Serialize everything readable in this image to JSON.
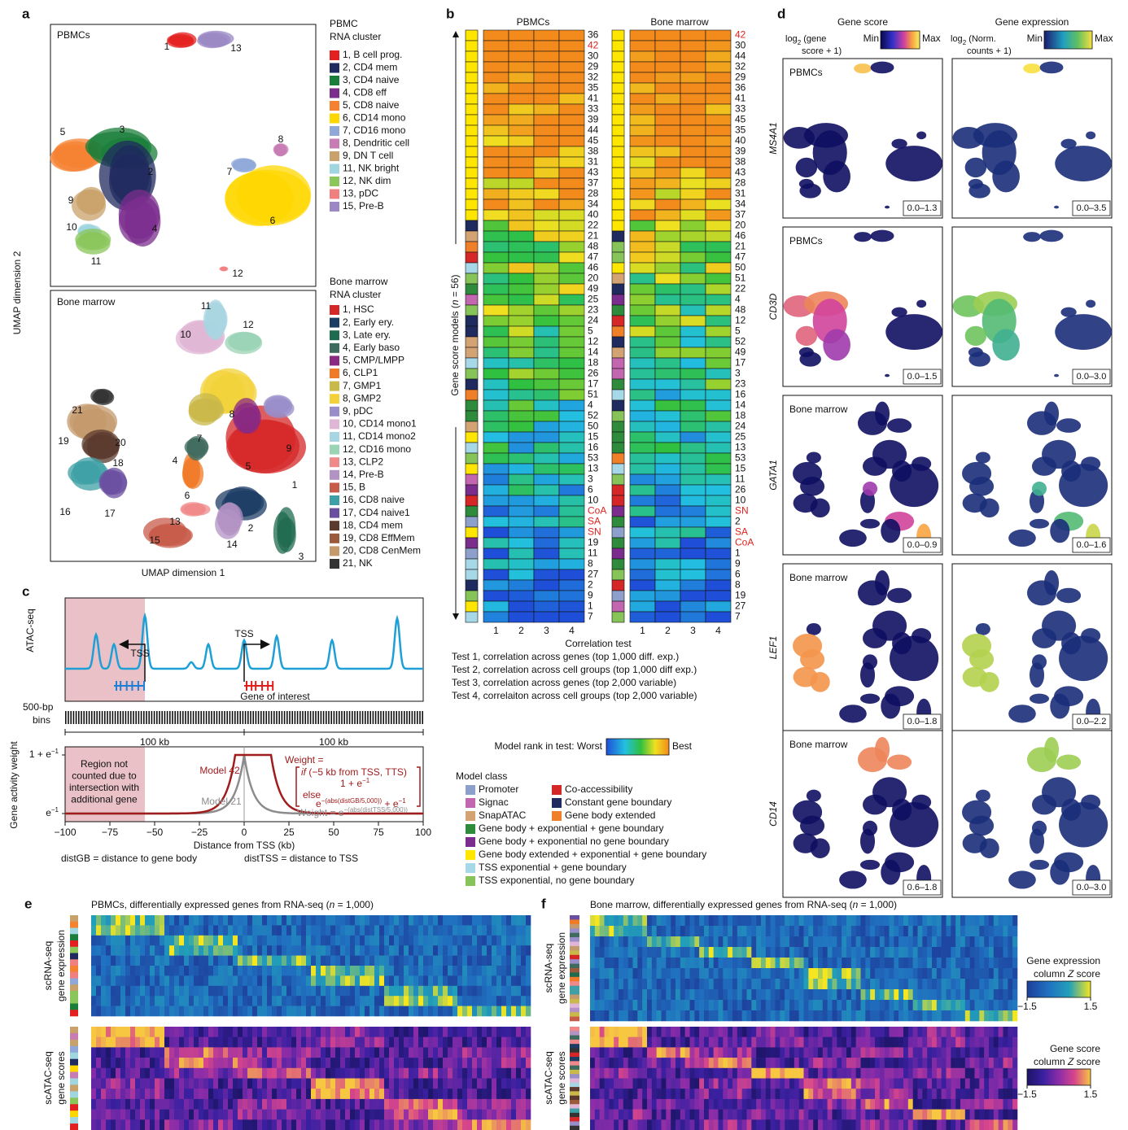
{
  "a": {
    "label": "a",
    "top_title": "PBMCs",
    "bottom_title": "Bone marrow",
    "y_axis": "UMAP dimension 2",
    "x_axis": "UMAP dimension 1",
    "pbmc_cluster_labels": [
      "1",
      "13",
      "5",
      "3",
      "2",
      "9",
      "10",
      "11",
      "4",
      "7",
      "8",
      "6",
      "12"
    ],
    "bm_cluster_labels": [
      "11",
      "12",
      "10",
      "21",
      "19",
      "20",
      "18",
      "16",
      "17",
      "8",
      "7",
      "9",
      "4",
      "5",
      "1",
      "6",
      "13",
      "2",
      "3",
      "15",
      "14"
    ],
    "pbmc_legend": {
      "title": [
        "PBMC",
        "RNA cluster"
      ],
      "items": [
        {
          "label": "1, B cell prog.",
          "color": "#e3201f"
        },
        {
          "label": "2, CD4 mem",
          "color": "#1f2a5e"
        },
        {
          "label": "3, CD4 naive",
          "color": "#1a7d3a"
        },
        {
          "label": "4, CD8 eff",
          "color": "#7b2d8e"
        },
        {
          "label": "5, CD8 naive",
          "color": "#f58231"
        },
        {
          "label": "6, CD14 mono",
          "color": "#ffd700"
        },
        {
          "label": "7, CD16 mono",
          "color": "#8fa8d8"
        },
        {
          "label": "8, Dendritic cell",
          "color": "#c77cb3"
        },
        {
          "label": "9, DN T cell",
          "color": "#c9a16b"
        },
        {
          "label": "11, NK bright",
          "color": "#9fd6e0"
        },
        {
          "label": "12, NK dim",
          "color": "#8ac65a"
        },
        {
          "label": "13, pDC",
          "color": "#f08080"
        },
        {
          "label": "15, Pre-B",
          "color": "#9b88c4"
        }
      ]
    },
    "bm_legend": {
      "title": [
        "Bone marrow",
        "RNA cluster"
      ],
      "items": [
        {
          "label": "1, HSC",
          "color": "#d62728"
        },
        {
          "label": "2, Early ery.",
          "color": "#1d3c64"
        },
        {
          "label": "3, Late ery.",
          "color": "#1f6b4f"
        },
        {
          "label": "4, Early baso",
          "color": "#3f6b5e"
        },
        {
          "label": "5, CMP/LMPP",
          "color": "#8a2a83"
        },
        {
          "label": "6, CLP1",
          "color": "#f07a28"
        },
        {
          "label": "7, GMP1",
          "color": "#c9b84a"
        },
        {
          "label": "8, GMP2",
          "color": "#f2d13a"
        },
        {
          "label": "9, pDC",
          "color": "#9a8ec9"
        },
        {
          "label": "10, CD14 mono1",
          "color": "#e0b6d6"
        },
        {
          "label": "11, CD14 mono2",
          "color": "#a8d5e2"
        },
        {
          "label": "12, CD16 mono",
          "color": "#9bd3b5"
        },
        {
          "label": "13, CLP2",
          "color": "#f08a8a"
        },
        {
          "label": "14, Pre-B",
          "color": "#b392c4"
        },
        {
          "label": "15, B",
          "color": "#c75b4a"
        },
        {
          "label": "16, CD8 naive",
          "color": "#3ea0a6"
        },
        {
          "label": "17, CD4 naive1",
          "color": "#6a4fa0"
        },
        {
          "label": "18, CD4 mem",
          "color": "#5b3a2e"
        },
        {
          "label": "19, CD8 EffMem",
          "color": "#9c5a3c"
        },
        {
          "label": "20, CD8 CenMem",
          "color": "#c49a6c"
        },
        {
          "label": "21, NK",
          "color": "#333333"
        }
      ]
    }
  },
  "b": {
    "label": "b",
    "headers": [
      "PBMCs",
      "Bone marrow"
    ],
    "y_axis": [
      "Gene score models (",
      "n",
      " = 56)"
    ],
    "left_rows": [
      "36",
      {
        "text": "42",
        "color": "#e0231e"
      },
      "30",
      "29",
      "32",
      "35",
      "41",
      "33",
      "39",
      "44",
      "45",
      "38",
      "31",
      "43",
      "37",
      "28",
      "34",
      "40",
      "22",
      "21",
      "48",
      "47",
      "46",
      "20",
      "49",
      "25",
      "23",
      "24",
      "5",
      "12",
      "14",
      "18",
      "26",
      "17",
      "51",
      "4",
      "52",
      "50",
      "15",
      "16",
      "53",
      "13",
      "3",
      "6",
      "10",
      {
        "text": "CoA",
        "color": "#e0231e"
      },
      {
        "text": "SA",
        "color": "#e0231e"
      },
      {
        "text": "SN",
        "color": "#e0231e"
      },
      "19",
      "11",
      "8",
      "27",
      "2",
      "9",
      "1",
      "7"
    ],
    "right_rows": [
      {
        "text": "42",
        "color": "#e0231e"
      },
      "30",
      "44",
      "32",
      "29",
      "36",
      "41",
      "33",
      "45",
      "35",
      "40",
      "39",
      "38",
      "43",
      "28",
      "31",
      "34",
      "37",
      "20",
      "46",
      "21",
      "47",
      "50",
      "51",
      "22",
      "4",
      "48",
      "12",
      "5",
      "52",
      "49",
      "17",
      "3",
      "23",
      "16",
      "14",
      "18",
      "24",
      "25",
      "13",
      "53",
      "15",
      "11",
      "26",
      "10",
      {
        "text": "SN",
        "color": "#e0231e"
      },
      "2",
      {
        "text": "SA",
        "color": "#e0231e"
      },
      {
        "text": "CoA",
        "color": "#e0231e"
      },
      "1",
      "9",
      "6",
      "8",
      "19",
      "27",
      "7"
    ],
    "xticks": [
      1,
      2,
      3,
      4
    ],
    "x_axis": "Correlation test",
    "tests": [
      "Test 1, correlation across genes (top 1,000 diff. exp.)",
      "Test 2, correlation across cell groups (top 1,000 diff exp.)",
      "Test 3, correlation across genes (top 2,000 variable)",
      "Test 4, correlaiton across cell groups (top 2,000 variable)"
    ],
    "rank_legend": [
      "Model rank in test: Worst",
      "Best"
    ],
    "model_class_title": "Model class",
    "model_classes": [
      {
        "label": "Promoter",
        "color": "#8da0cb"
      },
      {
        "label": "Co-accessibility",
        "color": "#d62728"
      },
      {
        "label": "Signac",
        "color": "#c266b0"
      },
      {
        "label": "Constant gene boundary",
        "color": "#1f2a5e"
      },
      {
        "label": "SnapATAC",
        "color": "#d4a373"
      },
      {
        "label": "Gene body extended",
        "color": "#f07f2a"
      },
      {
        "label": "Gene body + exponential + gene boundary",
        "color": "#2e8b3c"
      },
      {
        "label": "Gene body + exponential no gene boundary",
        "color": "#7b2d8e"
      },
      {
        "label": "Gene body extended + exponential + gene boundary",
        "color": "#ffe600"
      },
      {
        "label": "TSS exponential + gene boundary",
        "color": "#a6d8e8"
      },
      {
        "label": "TSS exponential, no gene boundary",
        "color": "#86c45a"
      }
    ]
  },
  "c": {
    "label": "c",
    "atac": "ATAC-seq",
    "tss": [
      "TSS",
      "TSS"
    ],
    "gene": "Gene of interest",
    "bins": [
      "500-bp",
      "bins"
    ],
    "scale": [
      "100 kb",
      "100 kb"
    ],
    "y_axis": "Gene activity weight",
    "ytick_top": [
      "1 + e",
      "−1"
    ],
    "ytick_bottom": [
      "e",
      "−1"
    ],
    "region": [
      "Region not",
      "counted due to",
      "intersection with",
      "additional gene"
    ],
    "model42": "Model 42",
    "model21": "Model 21",
    "formula42": {
      "head": "Weight =",
      "if": [
        "if",
        " (−5 kb from TSS, TTS)"
      ],
      "then": [
        "1 + e",
        "−1"
      ],
      "else": "else",
      "else_expr": [
        "e",
        "−(abs(distGB/5,000))",
        " + e",
        "−1"
      ]
    },
    "formula21": [
      "Weight = e",
      "−(abs(distTSS/5,000))"
    ],
    "xticks": [
      {
        "value": -100,
        "label": "−100"
      },
      {
        "value": -75,
        "label": "−75"
      },
      {
        "value": -50,
        "label": "−50"
      },
      {
        "value": -25,
        "label": "−25"
      },
      0,
      25,
      50,
      75,
      100
    ],
    "x_axis": "Distance from TSS (kb)",
    "footnote": [
      "distGB = distance to gene body",
      "distTSS = distance to TSS"
    ]
  },
  "d": {
    "label": "d",
    "headers": [
      "Gene score",
      "Gene expression"
    ],
    "colorbars": [
      [
        "log",
        "2",
        " (gene",
        "score + 1)"
      ],
      [
        "log",
        "2",
        " (Norm.",
        "counts + 1)"
      ]
    ],
    "min": "Min",
    "max": "Max",
    "rows": [
      {
        "gene": "MS4A1",
        "title": "PBMCs",
        "score_range": "0.0–1.3",
        "expr_range": "0.0–3.5"
      },
      {
        "gene": "CD3D",
        "title": "PBMCs",
        "score_range": "0.0–1.5",
        "expr_range": "0.0–3.0"
      },
      {
        "gene": "GATA1",
        "title": "Bone marrow",
        "score_range": "0.0–0.9",
        "expr_range": "0.0–1.6"
      },
      {
        "gene": "LEF1",
        "title": "Bone marrow",
        "score_range": "0.0–1.8",
        "expr_range": "0.0–2.2"
      },
      {
        "gene": "CD14",
        "title": "Bone marrow",
        "score_range": "0.6–1.8",
        "expr_range": "0.0–3.0"
      }
    ]
  },
  "e": {
    "label": "e",
    "title": [
      "PBMCs, differentially expressed genes from RNA-seq (",
      "n",
      " = 1,000)"
    ],
    "rna": [
      "scRNA-seq",
      "gene expression"
    ],
    "atac": [
      "scATAC-seq",
      "gene scores"
    ]
  },
  "f": {
    "label": "f",
    "title": [
      "Bone marrow, differentially expressed genes from RNA-seq (",
      "n",
      " = 1,000)"
    ],
    "rna": [
      "scRNA-seq",
      "gene expression"
    ],
    "atac": [
      "scATAC-seq",
      "gene scores"
    ],
    "cb_expr": [
      "Gene expression",
      "column ",
      "Z",
      " score"
    ],
    "cb_score": [
      "Gene score",
      "column ",
      "Z",
      " score"
    ],
    "cb_ticks": [
      {
        "value": -1.5,
        "label": "−1.5"
      },
      1.5
    ]
  }
}
